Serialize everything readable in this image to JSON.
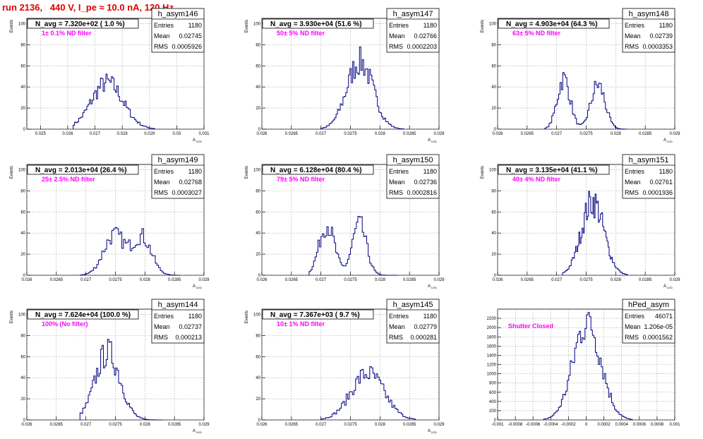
{
  "run_title": "run 2136,   440 V, I_pe ≈ 10.0 nA, 120 Hz",
  "chart_data": [
    {
      "type": "histogram",
      "hist_name": "h_asym146",
      "title": "N_avg = 7.320e+02 ( 1.0 %)",
      "annotation": "1± 0.1% ND filter",
      "stats": {
        "entries_label": "Entries",
        "entries": "1180",
        "mean_label": "Mean",
        "mean": "0.02745",
        "rms_label": "RMS",
        "rms": "0.0005926"
      },
      "ylabel": "Events",
      "xlabel_main": "A",
      "xlabel_sub": "LED",
      "xlim": [
        0.0245,
        0.031
      ],
      "ylim": [
        0,
        105
      ],
      "xticks": [
        0.025,
        0.026,
        0.027,
        0.028,
        0.029,
        0.03,
        0.031
      ],
      "xtick_labels": [
        "0.025",
        "0.026",
        "0.027",
        "0.028",
        "0.029",
        "0.03",
        "0.031"
      ],
      "yticks": [
        0,
        20,
        40,
        60,
        80,
        100
      ],
      "ytick_labels": [
        "0",
        "20",
        "40",
        "60",
        "80",
        "100"
      ],
      "shape": [
        {
          "mu": 0.02745,
          "sigma": 0.00058,
          "amp": 44
        }
      ],
      "xmin_data": 0.0262,
      "xmax_data": 0.0292
    },
    {
      "type": "histogram",
      "hist_name": "h_asym147",
      "title": "N_avg = 3.930e+04 (51.6 %)",
      "annotation": "50± 5% ND filter",
      "stats": {
        "entries_label": "Entries",
        "entries": "1180",
        "mean_label": "Mean",
        "mean": "0.02766",
        "rms_label": "RMS",
        "rms": "0.0002203"
      },
      "ylabel": "Events",
      "xlabel_main": "A",
      "xlabel_sub": "LED",
      "xlim": [
        0.026,
        0.029
      ],
      "ylim": [
        0,
        105
      ],
      "xticks": [
        0.026,
        0.0265,
        0.027,
        0.0275,
        0.028,
        0.0285,
        0.029
      ],
      "xtick_labels": [
        "0.026",
        "0.0265",
        "0.027",
        "0.0275",
        "0.028",
        "0.0285",
        "0.029"
      ],
      "yticks": [
        0,
        20,
        40,
        60,
        80,
        100
      ],
      "ytick_labels": [
        "0",
        "20",
        "40",
        "60",
        "80",
        "100"
      ],
      "shape": [
        {
          "mu": 0.02766,
          "sigma": 0.00022,
          "amp": 64
        }
      ],
      "xmin_data": 0.027,
      "xmax_data": 0.0284
    },
    {
      "type": "histogram",
      "hist_name": "h_asym148",
      "title": "N_avg = 4.903e+04 (64.3 %)",
      "annotation": "63± 5% ND filter",
      "stats": {
        "entries_label": "Entries",
        "entries": "1180",
        "mean_label": "Mean",
        "mean": "0.02739",
        "rms_label": "RMS",
        "rms": "0.0003353"
      },
      "ylabel": "Events",
      "xlabel_main": "A",
      "xlabel_sub": "LED",
      "xlim": [
        0.026,
        0.029
      ],
      "ylim": [
        0,
        105
      ],
      "xticks": [
        0.026,
        0.0265,
        0.027,
        0.0275,
        0.028,
        0.0285,
        0.029
      ],
      "xtick_labels": [
        "0.026",
        "0.0265",
        "0.027",
        "0.0275",
        "0.028",
        "0.0285",
        "0.029"
      ],
      "yticks": [
        0,
        20,
        40,
        60,
        80,
        100
      ],
      "ytick_labels": [
        "0",
        "20",
        "40",
        "60",
        "80",
        "100"
      ],
      "shape": [
        {
          "mu": 0.02712,
          "sigma": 0.00011,
          "amp": 48
        },
        {
          "mu": 0.0277,
          "sigma": 0.00012,
          "amp": 42
        }
      ],
      "xmin_data": 0.0268,
      "xmax_data": 0.0282
    },
    {
      "type": "histogram",
      "hist_name": "h_asym149",
      "title": "N_avg = 2.013e+04 (26.4 %)",
      "annotation": "25± 2.5% ND filter",
      "stats": {
        "entries_label": "Entries",
        "entries": "1180",
        "mean_label": "Mean",
        "mean": "0.02768",
        "rms_label": "RMS",
        "rms": "0.0003027"
      },
      "ylabel": "Events",
      "xlabel_main": "A",
      "xlabel_sub": "LED",
      "xlim": [
        0.026,
        0.029
      ],
      "ylim": [
        0,
        105
      ],
      "xticks": [
        0.026,
        0.0265,
        0.027,
        0.0275,
        0.028,
        0.0285,
        0.029
      ],
      "xtick_labels": [
        "0.026",
        "0.0265",
        "0.027",
        "0.0275",
        "0.028",
        "0.0285",
        "0.029"
      ],
      "yticks": [
        0,
        20,
        40,
        60,
        80,
        100
      ],
      "ytick_labels": [
        "0",
        "20",
        "40",
        "60",
        "80",
        "100"
      ],
      "shape": [
        {
          "mu": 0.02748,
          "sigma": 0.00018,
          "amp": 38
        },
        {
          "mu": 0.02795,
          "sigma": 0.00016,
          "amp": 36
        }
      ],
      "xmin_data": 0.0269,
      "xmax_data": 0.0286
    },
    {
      "type": "histogram",
      "hist_name": "h_asym150",
      "title": "N_avg = 6.128e+04 (80.4 %)",
      "annotation": "79± 5% ND filter",
      "stats": {
        "entries_label": "Entries",
        "entries": "1180",
        "mean_label": "Mean",
        "mean": "0.02736",
        "rms_label": "RMS",
        "rms": "0.0002816"
      },
      "ylabel": "Events",
      "xlabel_main": "A",
      "xlabel_sub": "LED",
      "xlim": [
        0.026,
        0.029
      ],
      "ylim": [
        0,
        105
      ],
      "xticks": [
        0.026,
        0.0265,
        0.027,
        0.0275,
        0.028,
        0.0285,
        0.029
      ],
      "xtick_labels": [
        "0.026",
        "0.0265",
        "0.027",
        "0.0275",
        "0.028",
        "0.0285",
        "0.029"
      ],
      "yticks": [
        0,
        20,
        40,
        60,
        80,
        100
      ],
      "ytick_labels": [
        "0",
        "20",
        "40",
        "60",
        "80",
        "100"
      ],
      "shape": [
        {
          "mu": 0.0271,
          "sigma": 0.00013,
          "amp": 48
        },
        {
          "mu": 0.02765,
          "sigma": 0.00012,
          "amp": 48
        }
      ],
      "xmin_data": 0.0268,
      "xmax_data": 0.0283
    },
    {
      "type": "histogram",
      "hist_name": "h_asym151",
      "title": "N_avg = 3.135e+04 (41.1 %)",
      "annotation": "40± 4% ND filter",
      "stats": {
        "entries_label": "Entries",
        "entries": "1180",
        "mean_label": "Mean",
        "mean": "0.02761",
        "rms_label": "RMS",
        "rms": "0.0001936"
      },
      "ylabel": "Events",
      "xlabel_main": "A",
      "xlabel_sub": "LED",
      "xlim": [
        0.026,
        0.029
      ],
      "ylim": [
        0,
        105
      ],
      "xticks": [
        0.026,
        0.0265,
        0.027,
        0.0275,
        0.028,
        0.0285,
        0.029
      ],
      "xtick_labels": [
        "0.026",
        "0.0265",
        "0.027",
        "0.0275",
        "0.028",
        "0.0285",
        "0.029"
      ],
      "yticks": [
        0,
        20,
        40,
        60,
        80,
        100
      ],
      "ytick_labels": [
        "0",
        "20",
        "40",
        "60",
        "80",
        "100"
      ],
      "shape": [
        {
          "mu": 0.02761,
          "sigma": 0.00019,
          "amp": 70
        }
      ],
      "xmin_data": 0.0271,
      "xmax_data": 0.0282
    },
    {
      "type": "histogram",
      "hist_name": "h_asym144",
      "title": "N_avg = 7.624e+04 (100.0 %)",
      "annotation": "100% (No filter)",
      "stats": {
        "entries_label": "Entries",
        "entries": "1180",
        "mean_label": "Mean",
        "mean": "0.02737",
        "rms_label": "RMS",
        "rms": "0.000213"
      },
      "ylabel": "Events",
      "xlabel_main": "A",
      "xlabel_sub": "LED",
      "xlim": [
        0.026,
        0.029
      ],
      "ylim": [
        0,
        105
      ],
      "xticks": [
        0.026,
        0.0265,
        0.027,
        0.0275,
        0.028,
        0.0285,
        0.029
      ],
      "xtick_labels": [
        "0.026",
        "0.0265",
        "0.027",
        "0.0275",
        "0.028",
        "0.0285",
        "0.029"
      ],
      "yticks": [
        0,
        20,
        40,
        60,
        80,
        100
      ],
      "ytick_labels": [
        "0",
        "20",
        "40",
        "60",
        "80",
        "100"
      ],
      "shape": [
        {
          "mu": 0.02737,
          "sigma": 0.00021,
          "amp": 64
        }
      ],
      "xmin_data": 0.0269,
      "xmax_data": 0.0283
    },
    {
      "type": "histogram",
      "hist_name": "h_asym145",
      "title": "N_avg = 7.367e+03 ( 9.7 %)",
      "annotation": "10± 1% ND filter",
      "stats": {
        "entries_label": "Entries",
        "entries": "1180",
        "mean_label": "Mean",
        "mean": "0.02779",
        "rms_label": "RMS",
        "rms": "0.000281"
      },
      "ylabel": "Events",
      "xlabel_main": "A",
      "xlabel_sub": "LED",
      "xlim": [
        0.026,
        0.029
      ],
      "ylim": [
        0,
        105
      ],
      "xticks": [
        0.026,
        0.0265,
        0.027,
        0.0275,
        0.028,
        0.0285,
        0.029
      ],
      "xtick_labels": [
        "0.026",
        "0.0265",
        "0.027",
        "0.0275",
        "0.028",
        "0.0285",
        "0.029"
      ],
      "yticks": [
        0,
        20,
        40,
        60,
        80,
        100
      ],
      "ytick_labels": [
        "0",
        "20",
        "40",
        "60",
        "80",
        "100"
      ],
      "shape": [
        {
          "mu": 0.02779,
          "sigma": 0.00028,
          "amp": 44
        }
      ],
      "xmin_data": 0.027,
      "xmax_data": 0.0286
    },
    {
      "type": "histogram",
      "hist_name": "hPed_asym",
      "title": "",
      "annotation": "Shutter Closed",
      "stats": {
        "entries_label": "Entries",
        "entries": "46071",
        "mean_label": "Mean",
        "mean": "1.206e-05",
        "rms_label": "RMS",
        "rms": "0.0001562"
      },
      "ylabel": "",
      "xlabel_main": "",
      "xlabel_sub": "",
      "xlim": [
        -0.001,
        0.001
      ],
      "ylim": [
        0,
        2400
      ],
      "xticks": [
        -0.001,
        -0.0008,
        -0.0006,
        -0.0004,
        -0.0002,
        0,
        0.0002,
        0.0004,
        0.0006,
        0.0008,
        0.001
      ],
      "xtick_labels": [
        "-0.001",
        "-0.0008",
        "-0.0006",
        "-0.0004",
        "-0.0002",
        "0",
        "0.0002",
        "0.0004",
        "0.0006",
        "0.0008",
        "0.001"
      ],
      "yticks": [
        0,
        200,
        400,
        600,
        800,
        1000,
        1200,
        1400,
        1600,
        1800,
        2000,
        2200
      ],
      "ytick_labels": [
        "0",
        "200",
        "400",
        "600",
        "800",
        "1000",
        "1200",
        "1400",
        "1600",
        "1800",
        "2000",
        "2200"
      ],
      "shape": [
        {
          "mu": 1.2e-05,
          "sigma": 0.000156,
          "amp": 2150
        }
      ],
      "xmin_data": -0.00048,
      "xmax_data": 0.00052
    }
  ]
}
